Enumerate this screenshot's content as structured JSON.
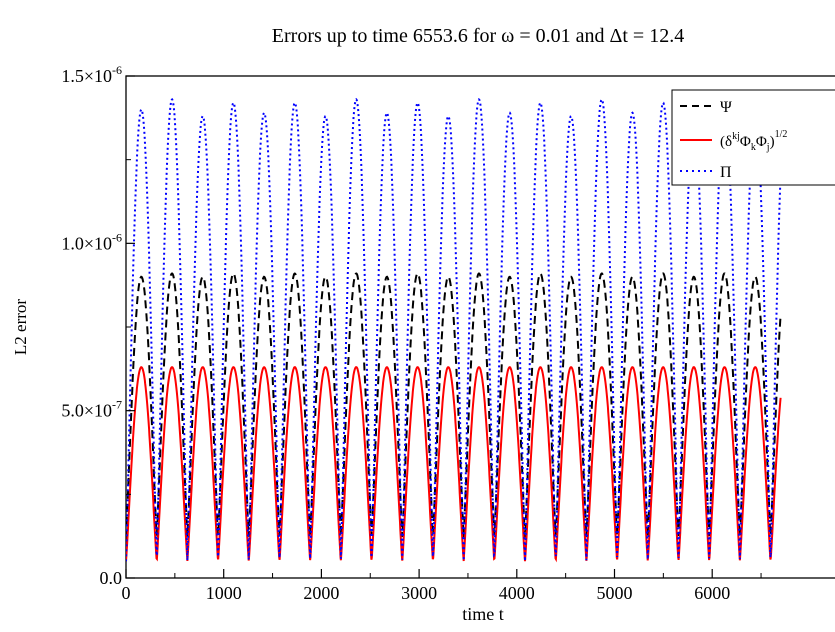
{
  "chart_data": {
    "type": "line",
    "title": "Errors up to time 6553.6 for ω = 0.01 and Δt = 12.4",
    "xlabel": "time t",
    "ylabel": "L2 error",
    "xlim": [
      0,
      6553.6
    ],
    "ylim": [
      0,
      1.5e-06
    ],
    "x_ticks": [
      {
        "value": 0,
        "label": "0"
      },
      {
        "value": 1000,
        "label": "1000"
      },
      {
        "value": 2000,
        "label": "2000"
      },
      {
        "value": 3000,
        "label": "3000"
      },
      {
        "value": 4000,
        "label": "4000"
      },
      {
        "value": 5000,
        "label": "5000"
      },
      {
        "value": 6000,
        "label": "6000"
      }
    ],
    "y_ticks": [
      {
        "value": 0,
        "mantissa": "0.0",
        "exponent": ""
      },
      {
        "value": 5e-07,
        "mantissa": "5.0×10",
        "exponent": "-7"
      },
      {
        "value": 1e-06,
        "mantissa": "1.0×10",
        "exponent": "-6"
      },
      {
        "value": 1.5e-06,
        "mantissa": "1.5×10",
        "exponent": "-6"
      }
    ],
    "grid": false,
    "legend_position": "top-right",
    "oscillation_period": 314.16,
    "series": [
      {
        "name": "Ψ",
        "color": "#000000",
        "dash": "dashed",
        "min": 1.2e-07,
        "peaks": [
          9e-07,
          9.1e-07,
          9e-07,
          9.1e-07,
          9e-07,
          9.1e-07,
          9e-07,
          9.1e-07,
          9e-07,
          9.1e-07,
          9e-07,
          9.1e-07,
          9e-07,
          9.1e-07,
          9e-07,
          9.1e-07,
          9e-07,
          9.1e-07,
          9e-07,
          9.1e-07,
          9e-07,
          9.1e-07
        ]
      },
      {
        "name": "(δkjΦkΦj)1/2",
        "color": "#ff0000",
        "dash": "solid",
        "min": 5e-08,
        "peaks": [
          6.3e-07,
          6.3e-07,
          6.3e-07,
          6.3e-07,
          6.3e-07,
          6.3e-07,
          6.3e-07,
          6.3e-07,
          6.3e-07,
          6.3e-07,
          6.3e-07,
          6.3e-07,
          6.3e-07,
          6.3e-07,
          6.3e-07,
          6.3e-07,
          6.3e-07,
          6.3e-07,
          6.3e-07,
          6.3e-07,
          6.3e-07,
          6.3e-07
        ]
      },
      {
        "name": "Π",
        "color": "#0000ff",
        "dash": "dotted",
        "min": 5e-08,
        "peaks": [
          1.4e-06,
          1.43e-06,
          1.38e-06,
          1.42e-06,
          1.39e-06,
          1.42e-06,
          1.38e-06,
          1.43e-06,
          1.39e-06,
          1.42e-06,
          1.38e-06,
          1.43e-06,
          1.39e-06,
          1.42e-06,
          1.38e-06,
          1.43e-06,
          1.39e-06,
          1.42e-06,
          1.38e-06,
          1.43e-06,
          1.39e-06,
          1.42e-06
        ]
      }
    ],
    "legend_items": [
      {
        "name": "Ψ",
        "color": "#000000",
        "dash": "dashed"
      },
      {
        "base": "(δ",
        "sup1": "kj",
        "mid1": "Φ",
        "sub1": "k",
        "mid2": "Φ",
        "sub2": "j",
        "mid3": ")",
        "sup2": "1/2",
        "color": "#ff0000",
        "dash": "solid"
      },
      {
        "name": "Π",
        "color": "#0000ff",
        "dash": "dotted"
      }
    ]
  }
}
